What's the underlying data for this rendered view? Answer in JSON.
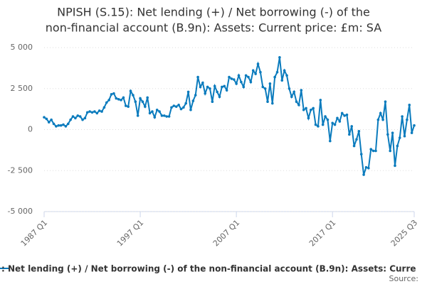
{
  "chart_data": {
    "type": "line",
    "title": [
      "NPISH (S.15): Net lending (+) / Net borrowing (-) of the",
      "non-financial account (B.9n): Assets: Current price: £m: SA"
    ],
    "categories": [
      "1987 Q1",
      null,
      null,
      null,
      null,
      null,
      null,
      null,
      null,
      null,
      null,
      null,
      null,
      null,
      null,
      null,
      null,
      null,
      null,
      null,
      null,
      null,
      null,
      null,
      null,
      null,
      null,
      null,
      null,
      null,
      null,
      null,
      null,
      null,
      null,
      null,
      null,
      null,
      null,
      null,
      "1997 Q1",
      null,
      null,
      null,
      null,
      null,
      null,
      null,
      null,
      null,
      null,
      null,
      null,
      null,
      null,
      null,
      null,
      null,
      null,
      null,
      null,
      null,
      null,
      null,
      null,
      null,
      null,
      null,
      null,
      null,
      null,
      null,
      null,
      null,
      null,
      null,
      null,
      null,
      null,
      null,
      "2007 Q1",
      null,
      null,
      null,
      null,
      null,
      null,
      null,
      null,
      null,
      null,
      null,
      null,
      null,
      null,
      null,
      null,
      null,
      null,
      null,
      null,
      null,
      null,
      null,
      null,
      null,
      null,
      null,
      null,
      null,
      null,
      null,
      null,
      null,
      null,
      null,
      null,
      null,
      null,
      null,
      "2017 Q1",
      null,
      null,
      null,
      null,
      null,
      null,
      null,
      null,
      null,
      null,
      null,
      null,
      null,
      null,
      null,
      null,
      null,
      null,
      null,
      null,
      null,
      null,
      null,
      null,
      null,
      null,
      null,
      null,
      null,
      null,
      null,
      null,
      null,
      "2025 Q3"
    ],
    "series": [
      {
        "name": ": Net lending (+) / Net borrowing (-) of the non-financial account (B.9n): Assets: Curre",
        "color": "#0a7bbd",
        "values": [
          750,
          650,
          450,
          600,
          350,
          200,
          250,
          250,
          300,
          200,
          350,
          600,
          800,
          700,
          850,
          800,
          600,
          700,
          1050,
          1100,
          1050,
          1100,
          1000,
          1150,
          1100,
          1350,
          1650,
          1800,
          2150,
          2200,
          1900,
          1850,
          1800,
          1950,
          1450,
          1400,
          2350,
          2100,
          1700,
          850,
          1900,
          1700,
          1400,
          1950,
          1000,
          1100,
          750,
          1200,
          1100,
          850,
          850,
          800,
          800,
          1350,
          1450,
          1400,
          1500,
          1250,
          1350,
          1600,
          2300,
          1200,
          1750,
          2100,
          3200,
          2600,
          2850,
          2200,
          2600,
          2500,
          1700,
          2650,
          2300,
          2000,
          2600,
          2650,
          2400,
          3200,
          3100,
          3050,
          2800,
          3300,
          2900,
          2600,
          3300,
          3200,
          2900,
          3600,
          3400,
          4000,
          3500,
          2600,
          2500,
          1700,
          2800,
          1600,
          3200,
          3500,
          4400,
          3000,
          3600,
          3300,
          2500,
          2000,
          2300,
          1700,
          1500,
          2400,
          1200,
          1300,
          700,
          1200,
          1300,
          300,
          200,
          1800,
          300,
          800,
          600,
          -700,
          400,
          300,
          700,
          500,
          1000,
          850,
          900,
          -300,
          200,
          -1000,
          -600,
          -100,
          -1500,
          -2750,
          -2300,
          -2350,
          -1200,
          -1300,
          -1300,
          600,
          1000,
          600,
          1700,
          -300,
          -1300,
          -200,
          -2200,
          -1000,
          -500,
          800,
          -400,
          600,
          1500,
          -200,
          250
        ]
      }
    ],
    "ylim": [
      -5000,
      5000
    ],
    "yticks": [
      {
        "value": -5000,
        "label": "-5 000"
      },
      {
        "value": -2500,
        "label": "-2 500"
      },
      0,
      {
        "value": 2500,
        "label": "2 500"
      },
      {
        "value": 5000,
        "label": "5 000"
      }
    ],
    "grid": true,
    "source": "Source:"
  }
}
